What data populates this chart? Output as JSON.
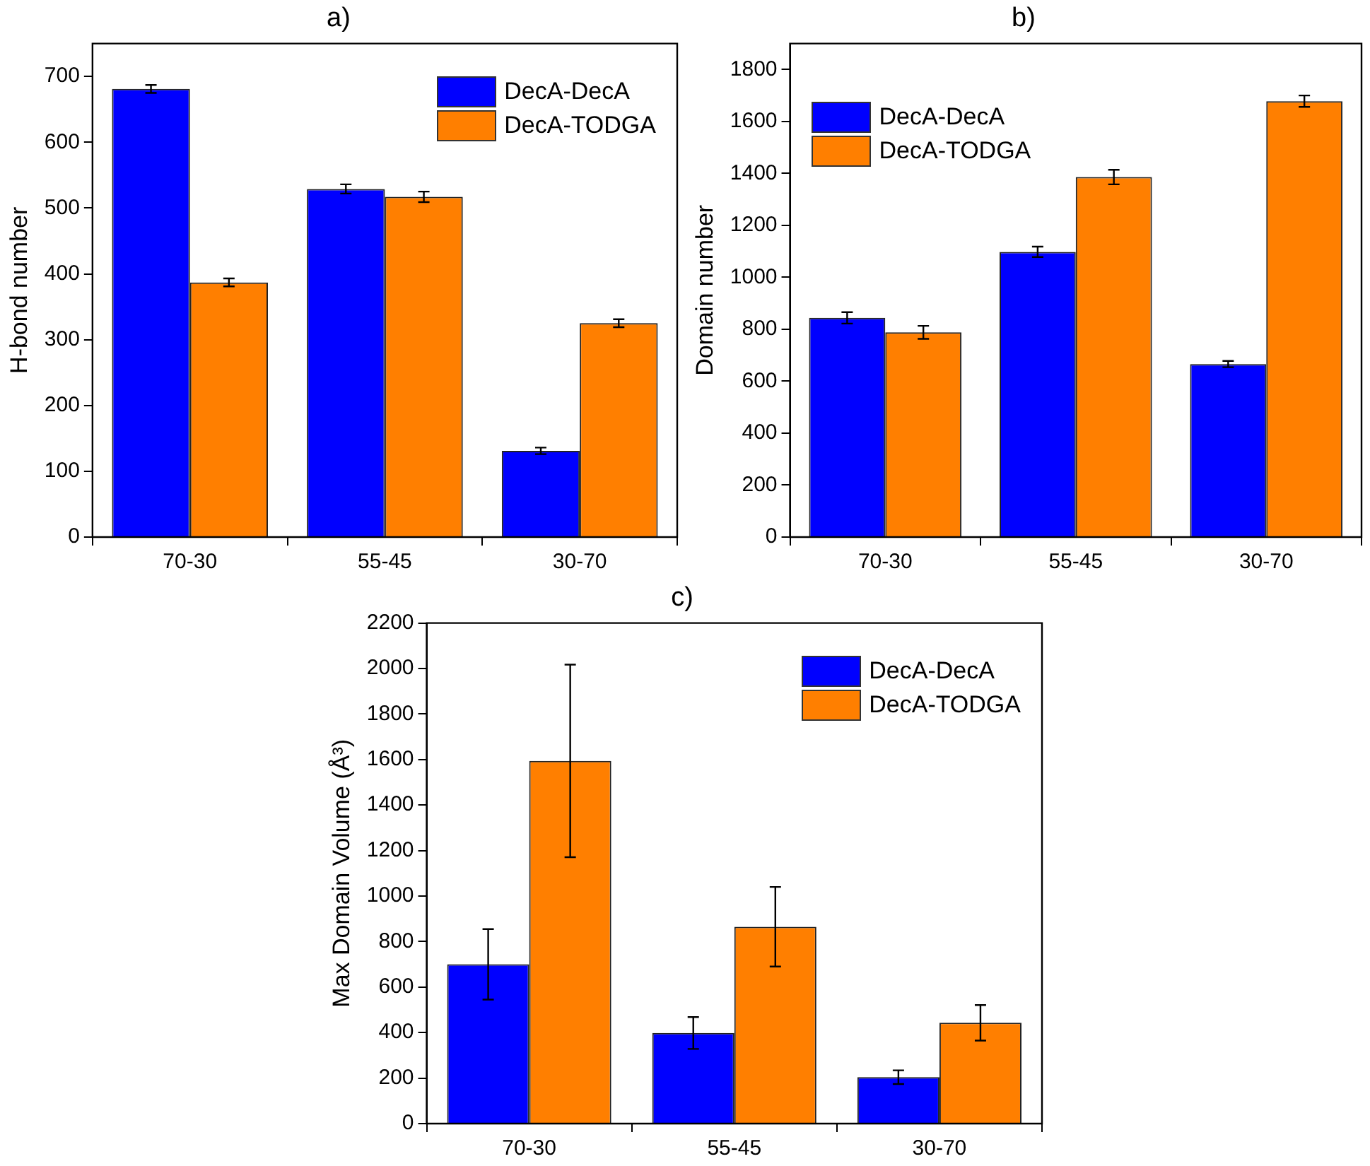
{
  "chart_data": [
    {
      "type": "bar",
      "title": "a)",
      "ylabel": "H-bond number",
      "categories": [
        "70-30",
        "55-45",
        "30-70"
      ],
      "series": [
        {
          "name": "DecA-DecA",
          "color": "#0000ff",
          "values": [
            681,
            529,
            131
          ],
          "errors": [
            6,
            7,
            5
          ]
        },
        {
          "name": "DecA-TODGA",
          "color": "#ff7f00",
          "values": [
            387,
            517,
            325
          ],
          "errors": [
            6,
            8,
            6
          ]
        }
      ],
      "ylim": [
        0,
        750
      ],
      "yticks": [
        0,
        100,
        200,
        300,
        400,
        500,
        600,
        700
      ],
      "grid": false,
      "legend": "top right"
    },
    {
      "type": "bar",
      "title": "b)",
      "ylabel": "Domain number",
      "categories": [
        "70-30",
        "55-45",
        "30-70"
      ],
      "series": [
        {
          "name": "DecA-DecA",
          "color": "#0000ff",
          "values": [
            844,
            1098,
            666
          ],
          "errors": [
            22,
            20,
            12
          ]
        },
        {
          "name": "DecA-TODGA",
          "color": "#ff7f00",
          "values": [
            788,
            1386,
            1678
          ],
          "errors": [
            25,
            28,
            22
          ]
        }
      ],
      "ylim": [
        0,
        1900
      ],
      "yticks": [
        0,
        200,
        400,
        600,
        800,
        1000,
        1200,
        1400,
        1600,
        1800
      ],
      "grid": false,
      "legend": "top left"
    },
    {
      "type": "bar",
      "title": "c)",
      "ylabel": "Max Domain Volume (Å³)",
      "categories": [
        "70-30",
        "55-45",
        "30-70"
      ],
      "series": [
        {
          "name": "DecA-DecA",
          "color": "#0000ff",
          "values": [
            700,
            398,
            204
          ],
          "errors": [
            155,
            70,
            30
          ]
        },
        {
          "name": "DecA-TODGA",
          "color": "#ff7f00",
          "values": [
            1594,
            865,
            443
          ],
          "errors": [
            423,
            175,
            78
          ]
        }
      ],
      "ylim": [
        0,
        2200
      ],
      "yticks": [
        0,
        200,
        400,
        600,
        800,
        1000,
        1200,
        1400,
        1600,
        1800,
        2000,
        2200
      ],
      "grid": false,
      "legend": "top right"
    }
  ]
}
